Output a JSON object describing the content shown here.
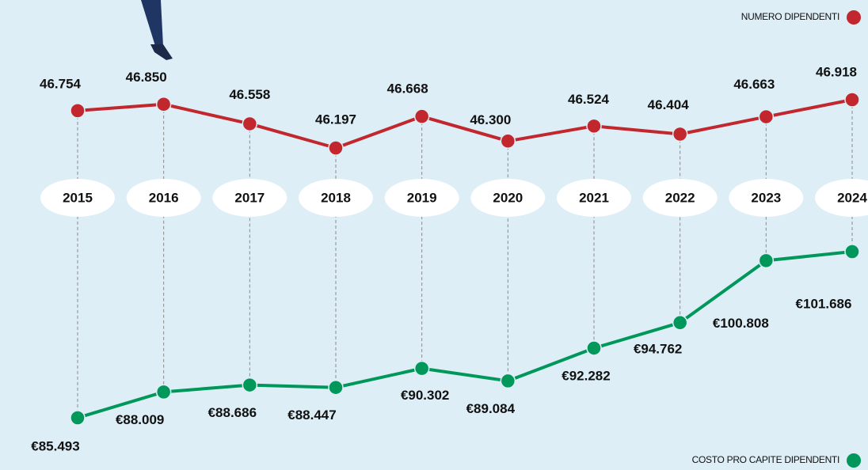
{
  "chart_data": {
    "type": "line",
    "categories": [
      "2015",
      "2016",
      "2017",
      "2018",
      "2019",
      "2020",
      "2021",
      "2022",
      "2023",
      "2024"
    ],
    "series": [
      {
        "name": "NUMERO DIPENDENTI",
        "color": "#c1272d",
        "values": [
          46754,
          46850,
          46558,
          46197,
          46668,
          46300,
          46524,
          46404,
          46663,
          46918
        ],
        "value_labels": [
          "46.754",
          "46.850",
          "46.558",
          "46.197",
          "46.668",
          "46.300",
          "46.524",
          "46.404",
          "46.663",
          "46.918"
        ]
      },
      {
        "name": "COSTO PRO CAPITE DIPENDENTI",
        "color": "#00975a",
        "axis": "y2",
        "values": [
          85493,
          88009,
          88686,
          88447,
          90302,
          89084,
          92282,
          94762,
          100808,
          101686
        ],
        "value_labels": [
          "€85.493",
          "€88.009",
          "€88.686",
          "€88.447",
          "€90.302",
          "€89.084",
          "€92.282",
          "€94.762",
          "€100.808",
          "€101.686"
        ]
      }
    ]
  }
}
